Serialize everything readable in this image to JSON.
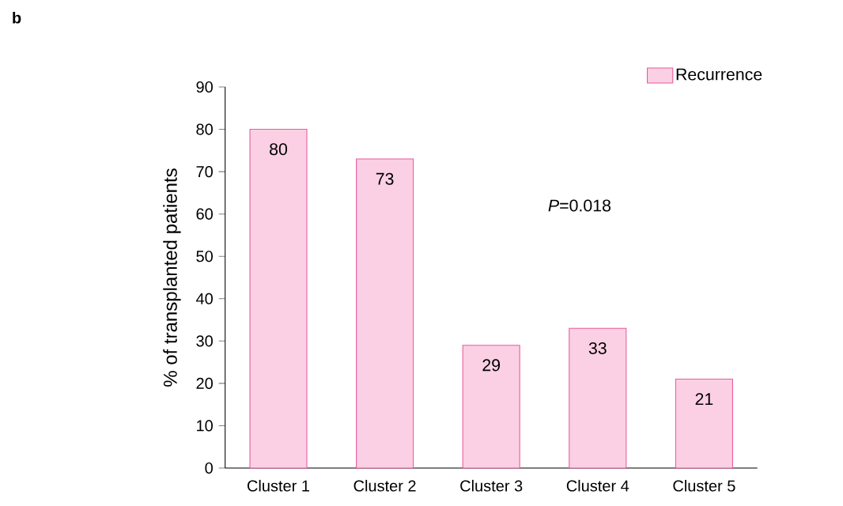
{
  "chart_data": {
    "type": "bar",
    "categories": [
      "Cluster 1",
      "Cluster 2",
      "Cluster 3",
      "Cluster 4",
      "Cluster 5"
    ],
    "series": [
      {
        "name": "Recurrence",
        "color": "#fcd0e4",
        "values": [
          80,
          73,
          29,
          33,
          21
        ]
      }
    ],
    "ylabel": "% of transplanted patients",
    "ylim": [
      0,
      90
    ],
    "yticks": [
      0,
      10,
      20,
      30,
      40,
      50,
      60,
      70,
      80,
      90
    ],
    "data_labels": true,
    "legend": "top right",
    "grid": false,
    "annotations": [
      "b",
      "*P*=0.018"
    ]
  }
}
